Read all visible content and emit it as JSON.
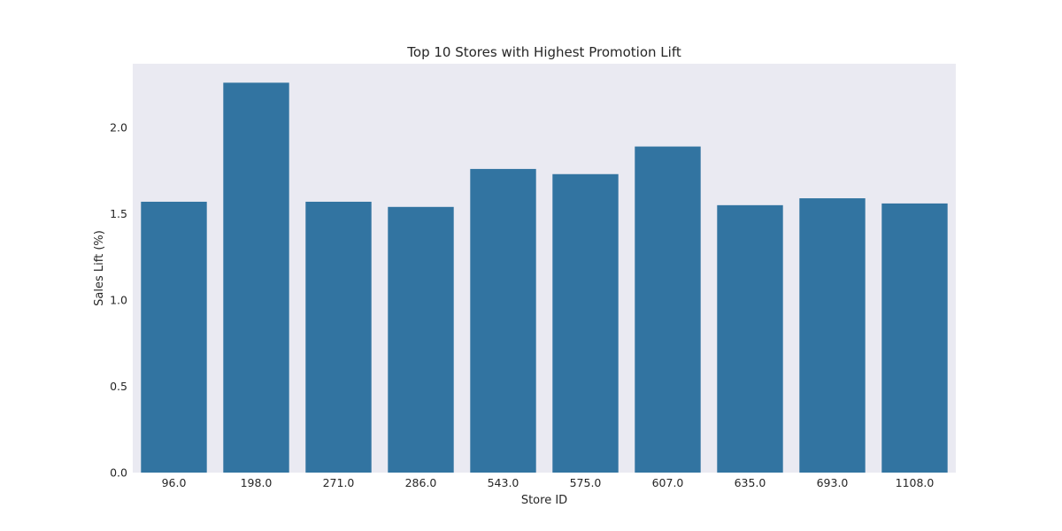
{
  "chart_data": {
    "type": "bar",
    "title": "Top 10 Stores with Highest Promotion Lift",
    "xlabel": "Store ID",
    "ylabel": "Sales Lift (%)",
    "categories": [
      "96.0",
      "198.0",
      "271.0",
      "286.0",
      "543.0",
      "575.0",
      "607.0",
      "635.0",
      "693.0",
      "1108.0"
    ],
    "values": [
      1.57,
      2.26,
      1.57,
      1.54,
      1.76,
      1.73,
      1.89,
      1.55,
      1.59,
      1.56
    ],
    "yticks": [
      "0.0",
      "0.5",
      "1.0",
      "1.5",
      "2.0"
    ],
    "ylim": [
      0,
      2.37
    ],
    "grid": false,
    "colors": {
      "bar": "#3274a1",
      "plot_background": "#eaeaf2",
      "figure_background": "#ffffff",
      "text": "#262626"
    }
  }
}
